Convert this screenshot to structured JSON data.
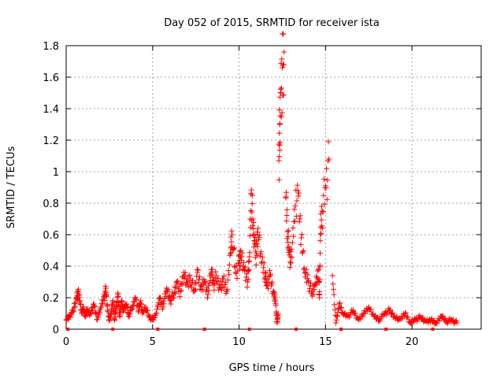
{
  "chart_data": {
    "type": "scatter",
    "title": "Day 052 of 2015, SRMTID for receiver ista",
    "xlabel": "GPS time / hours",
    "ylabel": "SRMTID / TECUs",
    "xlim": [
      0,
      24
    ],
    "ylim": [
      0,
      1.8
    ],
    "xticks": [
      "0",
      "5",
      "10",
      "15",
      "20"
    ],
    "yticks": [
      "0",
      "0.2",
      "0.4",
      "0.6",
      "0.8",
      "1",
      "1.2",
      "1.4",
      "1.6",
      "1.8"
    ],
    "grid": true,
    "marker": "plus",
    "color": "#ff0000",
    "zero_marker_x": [
      0.1,
      2.7,
      5.3,
      8.0,
      10.6,
      13.3,
      15.9,
      18.5,
      21.2
    ],
    "series": [
      {
        "name": "SRMTID",
        "x": [
          0.0,
          0.2,
          0.4,
          0.6,
          0.7,
          0.8,
          0.9,
          1.0,
          1.1,
          1.2,
          1.4,
          1.6,
          1.8,
          2.0,
          2.2,
          2.3,
          2.4,
          2.5,
          2.6,
          2.7,
          2.8,
          2.9,
          3.0,
          3.1,
          3.2,
          3.3,
          3.5,
          3.6,
          3.8,
          4.0,
          4.2,
          4.3,
          4.4,
          4.6,
          4.8,
          5.0,
          5.2,
          5.4,
          5.6,
          5.8,
          6.0,
          6.2,
          6.4,
          6.6,
          6.8,
          7.0,
          7.2,
          7.4,
          7.6,
          7.8,
          8.0,
          8.2,
          8.4,
          8.5,
          8.7,
          8.9,
          9.1,
          9.3,
          9.5,
          9.6,
          9.8,
          10.0,
          10.1,
          10.3,
          10.5,
          10.6,
          10.7,
          10.8,
          10.9,
          11.0,
          11.1,
          11.3,
          11.5,
          11.6,
          11.8,
          12.0,
          12.1,
          12.2,
          12.25,
          12.3,
          12.35,
          12.4,
          12.5,
          12.6,
          12.7,
          12.8,
          12.9,
          13.0,
          13.2,
          13.4,
          13.6,
          13.8,
          14.0,
          14.2,
          14.4,
          14.6,
          14.65,
          14.7,
          14.8,
          15.0,
          15.2,
          15.4,
          15.6,
          15.8,
          16.0,
          16.3,
          16.6,
          16.9,
          17.2,
          17.5,
          17.8,
          18.1,
          18.4,
          18.7,
          19.0,
          19.3,
          19.6,
          19.9,
          20.2,
          20.5,
          20.8,
          21.1,
          21.4,
          21.7,
          22.0,
          22.3,
          22.6
        ],
        "y": [
          0.06,
          0.08,
          0.12,
          0.2,
          0.24,
          0.18,
          0.1,
          0.14,
          0.08,
          0.12,
          0.1,
          0.16,
          0.06,
          0.14,
          0.2,
          0.26,
          0.12,
          0.06,
          0.1,
          0.18,
          0.06,
          0.14,
          0.22,
          0.08,
          0.18,
          0.12,
          0.16,
          0.08,
          0.14,
          0.2,
          0.12,
          0.18,
          0.1,
          0.14,
          0.08,
          0.06,
          0.1,
          0.2,
          0.14,
          0.26,
          0.18,
          0.22,
          0.3,
          0.24,
          0.36,
          0.28,
          0.32,
          0.24,
          0.36,
          0.28,
          0.3,
          0.22,
          0.38,
          0.28,
          0.34,
          0.26,
          0.32,
          0.24,
          0.48,
          0.6,
          0.36,
          0.42,
          0.5,
          0.38,
          0.3,
          0.46,
          0.86,
          0.7,
          0.56,
          0.48,
          0.64,
          0.42,
          0.36,
          0.28,
          0.34,
          0.24,
          0.18,
          0.04,
          0.1,
          1.07,
          1.3,
          1.5,
          1.66,
          1.76,
          0.84,
          0.62,
          0.5,
          0.42,
          0.76,
          0.88,
          0.58,
          0.36,
          0.3,
          0.24,
          0.28,
          0.38,
          0.2,
          0.6,
          0.75,
          0.91,
          1.08,
          0.34,
          0.04,
          0.16,
          0.1,
          0.08,
          0.12,
          0.06,
          0.1,
          0.14,
          0.08,
          0.06,
          0.1,
          0.12,
          0.08,
          0.06,
          0.1,
          0.04,
          0.06,
          0.08,
          0.05,
          0.06,
          0.04,
          0.08,
          0.05,
          0.06,
          0.04
        ]
      }
    ]
  }
}
